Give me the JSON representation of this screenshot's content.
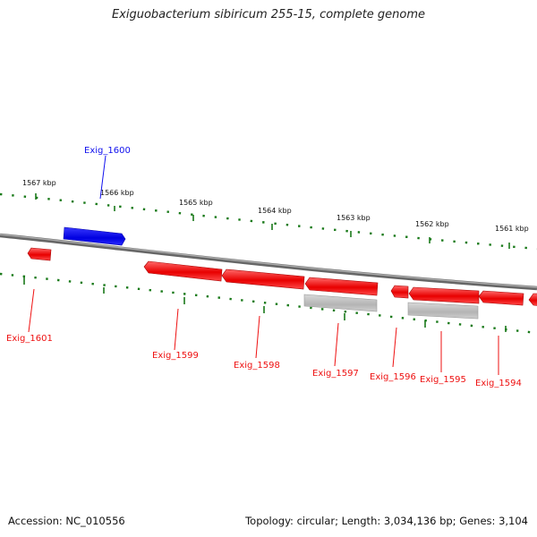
{
  "title": "Exiguobacterium sibiricum 255-15, complete genome",
  "footer": {
    "accession": "Accession: NC_010556",
    "summary": "Topology: circular; Length: 3,034,136 bp; Genes: 3,104"
  },
  "colors": {
    "forward": "#1010ee",
    "reverse": "#ee1010",
    "rna_or_pseudo": "#b8b8b8",
    "backbone": "#888888",
    "ticks": "#1a7a1a"
  },
  "scale": {
    "labels": [
      "1567 kbp",
      "1566 kbp",
      "1565 kbp",
      "1564 kbp",
      "1563 kbp",
      "1562 kbp",
      "1561 kbp"
    ]
  },
  "genes": [
    {
      "id": "Exig_1600",
      "strand": "forward"
    },
    {
      "id": "Exig_1601",
      "strand": "reverse"
    },
    {
      "id": "Exig_1599",
      "strand": "reverse"
    },
    {
      "id": "Exig_1598",
      "strand": "reverse"
    },
    {
      "id": "Exig_1597",
      "strand": "reverse"
    },
    {
      "id": "Exig_1596",
      "strand": "reverse"
    },
    {
      "id": "Exig_1595",
      "strand": "reverse"
    },
    {
      "id": "Exig_1594",
      "strand": "reverse"
    }
  ]
}
